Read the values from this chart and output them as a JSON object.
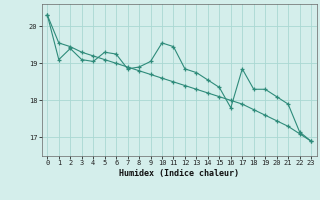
{
  "xlabel": "Humidex (Indice chaleur)",
  "background_color": "#d4eeeb",
  "line_color": "#2e8b7a",
  "grid_color": "#aad8d3",
  "x_values": [
    0,
    1,
    2,
    3,
    4,
    5,
    6,
    7,
    8,
    9,
    10,
    11,
    12,
    13,
    14,
    15,
    16,
    17,
    18,
    19,
    20,
    21,
    22,
    23
  ],
  "y_zigzag": [
    20.3,
    19.1,
    19.4,
    19.1,
    19.05,
    19.3,
    19.25,
    18.85,
    18.9,
    19.05,
    19.55,
    19.45,
    18.85,
    18.75,
    18.55,
    18.35,
    17.8,
    18.85,
    18.3,
    18.3,
    18.1,
    17.9,
    17.15,
    16.9
  ],
  "y_trend": [
    20.3,
    19.55,
    19.45,
    19.3,
    19.2,
    19.1,
    19.0,
    18.9,
    18.8,
    18.7,
    18.6,
    18.5,
    18.4,
    18.3,
    18.2,
    18.1,
    18.0,
    17.9,
    17.75,
    17.6,
    17.45,
    17.3,
    17.1,
    16.9
  ],
  "ylim": [
    16.5,
    20.6
  ],
  "yticks": [
    17,
    18,
    19,
    20
  ],
  "xticks": [
    0,
    1,
    2,
    3,
    4,
    5,
    6,
    7,
    8,
    9,
    10,
    11,
    12,
    13,
    14,
    15,
    16,
    17,
    18,
    19,
    20,
    21,
    22,
    23
  ]
}
